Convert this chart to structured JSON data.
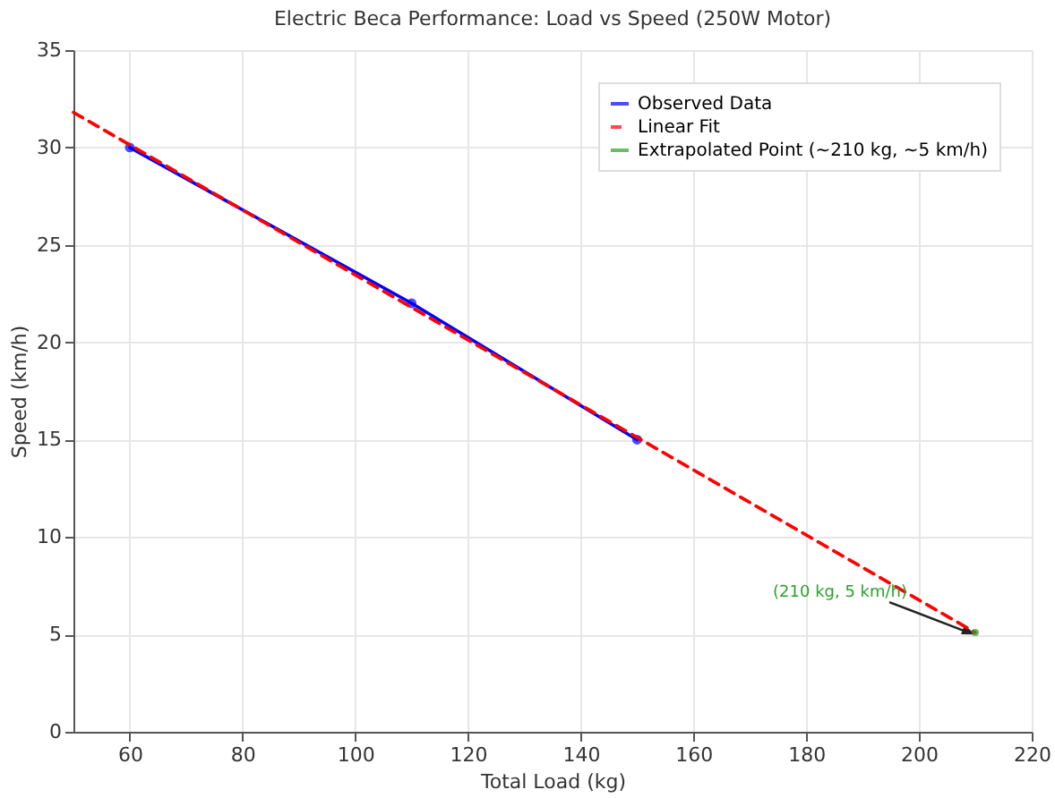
{
  "chart_data": {
    "type": "line",
    "title": "Electric Beca Performance: Load vs Speed (250W Motor)",
    "xlabel": "Total Load (kg)",
    "ylabel": "Speed (km/h)",
    "xlim": [
      50,
      220
    ],
    "xticks": [
      60,
      80,
      100,
      120,
      140,
      160,
      180,
      200,
      220
    ],
    "ylim": [
      0,
      35
    ],
    "yticks": [
      0,
      5,
      10,
      15,
      20,
      25,
      30,
      35
    ],
    "grid": true,
    "legend": "top right",
    "series": [
      {
        "name": "Observed Data",
        "type": "line",
        "color": "#0000ff",
        "marker": "circle",
        "line_style": "solid",
        "x": [
          60,
          110,
          150
        ],
        "values": [
          30,
          22,
          15
        ]
      },
      {
        "name": "Linear Fit",
        "type": "line",
        "color": "#ff0000",
        "marker": "none",
        "line_style": "dashed",
        "x": [
          50,
          210
        ],
        "values": [
          31.8,
          5.1
        ]
      },
      {
        "name": "Extrapolated Point (~210 kg, ~5 km/h)",
        "type": "scatter",
        "color": "#2ca02c",
        "marker": "circle",
        "x": [
          210
        ],
        "values": [
          5.1
        ]
      }
    ],
    "annotations": [
      {
        "text": "(210 kg, 5 km/h)",
        "x": 210,
        "y": 5
      }
    ]
  }
}
